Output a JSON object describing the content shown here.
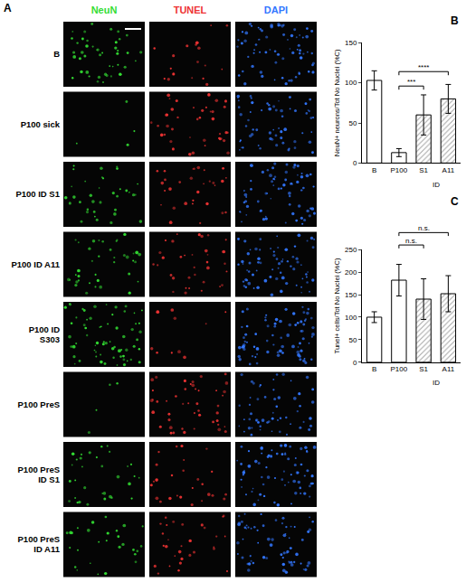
{
  "panel_a": {
    "panel": "A",
    "channels": [
      {
        "name": "NeuN",
        "color": "#33dd33"
      },
      {
        "name": "TUNEL",
        "color": "#ee3333"
      },
      {
        "name": "DAPI",
        "color": "#3377ff"
      }
    ],
    "rows": [
      "B",
      "P100 sick",
      "P100 ID S1",
      "P100 ID A11",
      "P100 ID S303",
      "P100 PreS",
      "P100 PreS ID S1",
      "P100 PreS ID A11"
    ]
  },
  "chart_data": [
    {
      "type": "bar",
      "panel": "B",
      "y_label": "NeuN+ neurons/Tot No Nuclei (%C)",
      "categories": [
        "B",
        "P100",
        "S1",
        "A11"
      ],
      "group_label": {
        "text": "ID",
        "categories": [
          "S1",
          "A11"
        ]
      },
      "values": [
        103,
        13,
        60,
        80
      ],
      "errors": [
        12,
        5,
        25,
        18
      ],
      "colors": [
        "#ffffff",
        "#ffffff",
        "#a6a6a6",
        "#a6a6a6"
      ],
      "ylim": [
        0,
        150
      ],
      "yticks": [
        0,
        50,
        100,
        150
      ],
      "grid": false,
      "significance": [
        {
          "from": "P100",
          "to": "S1",
          "text": "***"
        },
        {
          "from": "P100",
          "to": "A11",
          "text": "****"
        }
      ]
    },
    {
      "type": "bar",
      "panel": "C",
      "y_label": "Tunel+ cells/Tot No Nuclei (%C)",
      "categories": [
        "B",
        "P100",
        "S1",
        "A11"
      ],
      "group_label": {
        "text": "ID",
        "categories": [
          "S1",
          "A11"
        ]
      },
      "values": [
        100,
        182,
        140,
        152
      ],
      "errors": [
        12,
        35,
        45,
        40
      ],
      "colors": [
        "#ffffff",
        "#ffffff",
        "#a6a6a6",
        "#a6a6a6"
      ],
      "ylim": [
        0,
        250
      ],
      "yticks": [
        0,
        50,
        100,
        150,
        200,
        250
      ],
      "grid": false,
      "significance": [
        {
          "from": "P100",
          "to": "S1",
          "text": "n.s."
        },
        {
          "from": "P100",
          "to": "A11",
          "text": "n.s."
        }
      ]
    }
  ]
}
